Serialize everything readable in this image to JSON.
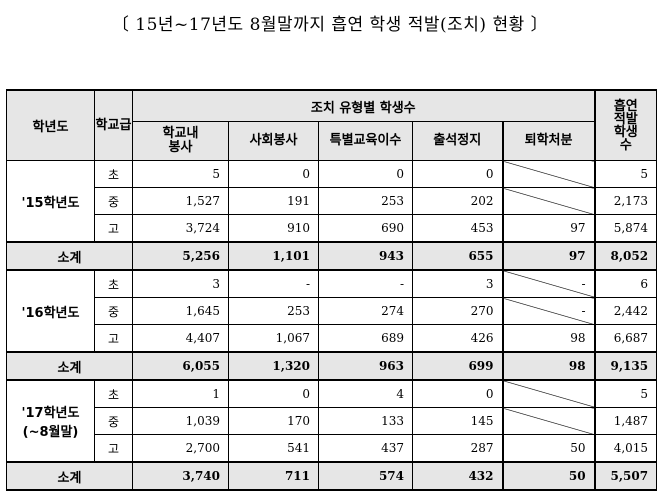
{
  "title": "〔 15년~17년도 8월말까지 흡연 학생 적발(조치) 현황 〕",
  "header": {
    "year_col": "학년도",
    "level_col": "학교급",
    "group": "조치 유형별 학생수",
    "columns": [
      "학교내\n봉사",
      "사회봉사",
      "특별교육이수",
      "출석정지",
      "퇴학처분"
    ],
    "total_col": "흡연\n적발\n학생\n수"
  },
  "groups": [
    {
      "year": "'15학년도",
      "rows": [
        {
          "level": "초",
          "values": [
            "5",
            "0",
            "0",
            "0",
            null
          ],
          "total": "5"
        },
        {
          "level": "중",
          "values": [
            "1,527",
            "191",
            "253",
            "202",
            null
          ],
          "total": "2,173"
        },
        {
          "level": "고",
          "values": [
            "3,724",
            "910",
            "690",
            "453",
            "97"
          ],
          "total": "5,874"
        }
      ],
      "subtotal": {
        "label": "소계",
        "values": [
          "5,256",
          "1,101",
          "943",
          "655",
          "97"
        ],
        "total": "8,052"
      }
    },
    {
      "year": "'16학년도",
      "rows": [
        {
          "level": "초",
          "values": [
            "3",
            "-",
            "-",
            "3",
            "-"
          ],
          "total": "6"
        },
        {
          "level": "중",
          "values": [
            "1,645",
            "253",
            "274",
            "270",
            "-"
          ],
          "total": "2,442"
        },
        {
          "level": "고",
          "values": [
            "4,407",
            "1,067",
            "689",
            "426",
            "98"
          ],
          "total": "6,687"
        }
      ],
      "subtotal": {
        "label": "소계",
        "values": [
          "6,055",
          "1,320",
          "963",
          "699",
          "98"
        ],
        "total": "9,135"
      }
    },
    {
      "year": "'17학년도\n(~8월말)",
      "rows": [
        {
          "level": "초",
          "values": [
            "1",
            "0",
            "4",
            "0",
            null
          ],
          "total": "5"
        },
        {
          "level": "중",
          "values": [
            "1,039",
            "170",
            "133",
            "145",
            null
          ],
          "total": "1,487"
        },
        {
          "level": "고",
          "values": [
            "2,700",
            "541",
            "437",
            "287",
            "50"
          ],
          "total": "4,015"
        }
      ],
      "subtotal": {
        "label": "소계",
        "values": [
          "3,740",
          "711",
          "574",
          "432",
          "50"
        ],
        "total": "5,507"
      }
    }
  ]
}
